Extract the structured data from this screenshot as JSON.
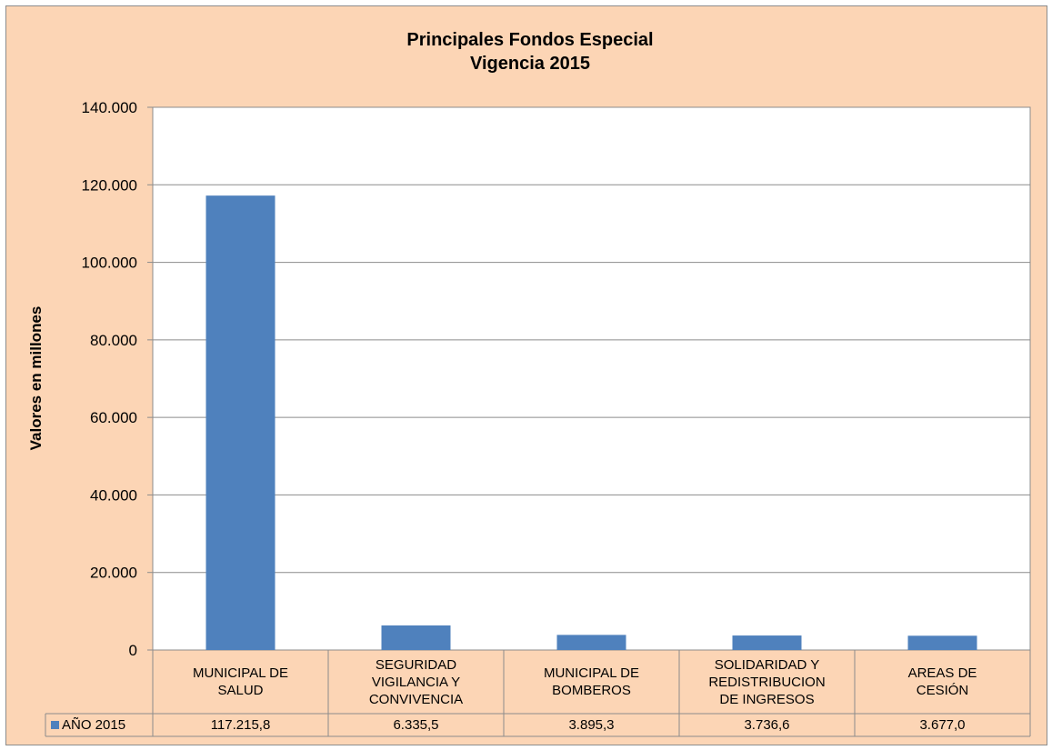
{
  "chart_data": {
    "type": "bar",
    "title": "Principales Fondos Especial",
    "subtitle": "Vigencia 2015",
    "y_label": "Valores en millones",
    "categories": [
      "MUNICIPAL DE SALUD",
      "SEGURIDAD VIGILANCIA Y CONVIVENCIA",
      "MUNICIPAL DE BOMBEROS",
      "SOLIDARIDAD Y REDISTRIBUCION DE INGRESOS",
      "AREAS DE CESIÓN"
    ],
    "series": [
      {
        "name": "AÑO 2015",
        "color": "#4F81BD",
        "values": [
          117215.8,
          6335.5,
          3895.3,
          3736.6,
          3677.0
        ],
        "value_labels": [
          "117.215,8",
          "6.335,5",
          "3.895,3",
          "3.736,6",
          "3.677,0"
        ]
      }
    ],
    "ylim": [
      0,
      140000
    ],
    "yticks": [
      0,
      {
        "value": 20000,
        "label": "20.000"
      },
      {
        "value": 40000,
        "label": "40.000"
      },
      {
        "value": 60000,
        "label": "60.000"
      },
      {
        "value": 80000,
        "label": "80.000"
      },
      {
        "value": 100000,
        "label": "100.000"
      },
      {
        "value": 120000,
        "label": "120.000"
      },
      {
        "value": 140000,
        "label": "140.000"
      }
    ],
    "grid": true
  }
}
